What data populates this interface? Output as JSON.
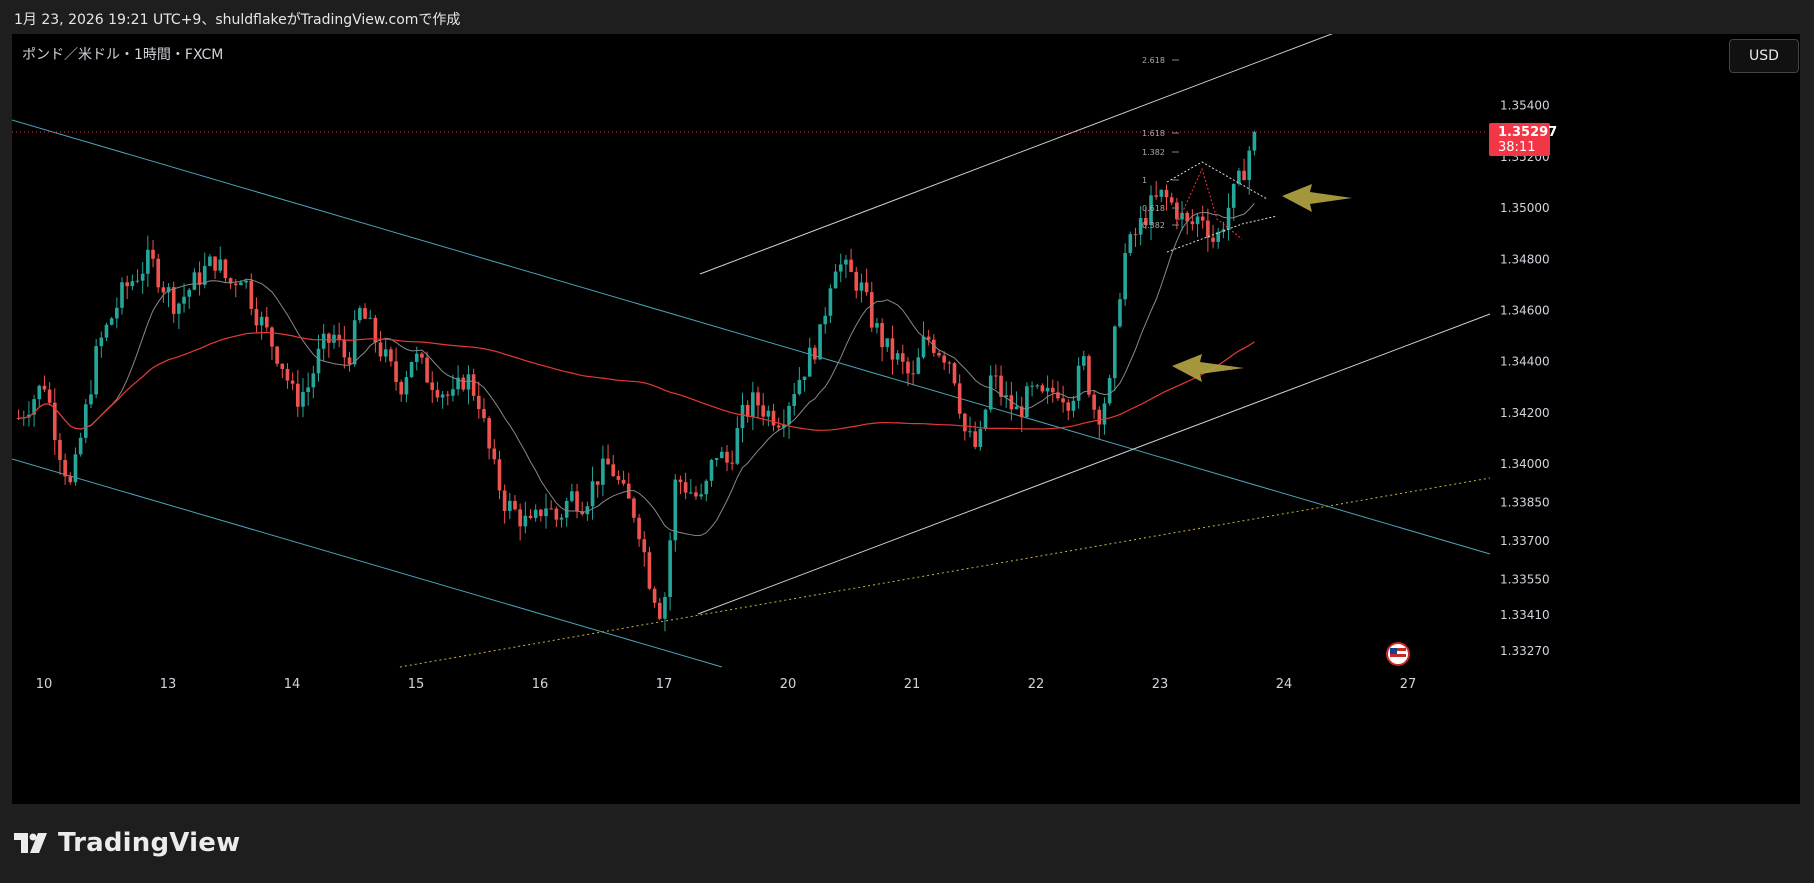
{
  "header": {
    "caption": "1月 23, 2026 19:21 UTC+9、shuldflakeがTradingView.comで作成"
  },
  "chart": {
    "symbol_title": "ポンド／米ドル・1時間・FXCM",
    "currency_label": "USD",
    "current_price": "1.35297",
    "countdown": "38:11",
    "fib_labels": [
      "2.618",
      "1.618",
      "1.382",
      "1",
      "0.618",
      "0.382"
    ]
  },
  "footer": {
    "brand": "TradingView"
  },
  "colors": {
    "up": "#26a69a",
    "down": "#ef5350",
    "ma_long": "#e53935",
    "ma_short": "#888888",
    "channel": "#4aa3b8",
    "trend": "#cfcfcf",
    "dotted": "#c9b33c",
    "arrow": "#b5a642",
    "price_tag": "#f23645"
  },
  "chart_data": {
    "type": "candlestick",
    "title": "ポンド／米ドル・1時間・FXCM",
    "x_ticks": [
      "10",
      "13",
      "14",
      "15",
      "16",
      "17",
      "20",
      "21",
      "22",
      "23",
      "24",
      "27"
    ],
    "y_ticks": [
      "1.35400",
      "1.35200",
      "1.35000",
      "1.34800",
      "1.34600",
      "1.34400",
      "1.34200",
      "1.34000",
      "1.33850",
      "1.33700",
      "1.33550",
      "1.33410",
      "1.33270"
    ],
    "ylim": [
      1.3318,
      1.3568
    ],
    "last_price": 1.35297,
    "close_path": [
      [
        0,
        1.3418
      ],
      [
        2,
        1.3432
      ],
      [
        3,
        1.3408
      ],
      [
        4,
        1.339
      ],
      [
        6,
        1.3445
      ],
      [
        8,
        1.3468
      ],
      [
        10,
        1.348
      ],
      [
        11,
        1.347
      ],
      [
        12,
        1.3462
      ],
      [
        14,
        1.3475
      ],
      [
        15,
        1.348
      ],
      [
        16,
        1.347
      ],
      [
        17,
        1.3475
      ],
      [
        18,
        1.346
      ],
      [
        20,
        1.344
      ],
      [
        21,
        1.3425
      ],
      [
        22,
        1.343
      ],
      [
        23,
        1.3445
      ],
      [
        24,
        1.345
      ],
      [
        25,
        1.344
      ],
      [
        26,
        1.346
      ],
      [
        27,
        1.345
      ],
      [
        28,
        1.344
      ],
      [
        29,
        1.343
      ],
      [
        30,
        1.3443
      ],
      [
        31,
        1.3435
      ],
      [
        32,
        1.343
      ],
      [
        33,
        1.3425
      ],
      [
        34,
        1.3435
      ],
      [
        35,
        1.3425
      ],
      [
        36,
        1.34
      ],
      [
        37,
        1.3385
      ],
      [
        38,
        1.338
      ],
      [
        39,
        1.3375
      ],
      [
        40,
        1.3385
      ],
      [
        41,
        1.3378
      ],
      [
        42,
        1.3388
      ],
      [
        43,
        1.3385
      ],
      [
        44,
        1.3395
      ],
      [
        45,
        1.34
      ],
      [
        46,
        1.3388
      ],
      [
        47,
        1.338
      ],
      [
        48,
        1.3355
      ],
      [
        49,
        1.334
      ],
      [
        50,
        1.3395
      ],
      [
        51,
        1.339
      ],
      [
        52,
        1.3385
      ],
      [
        53,
        1.3405
      ],
      [
        54,
        1.34
      ],
      [
        55,
        1.3418
      ],
      [
        56,
        1.3425
      ],
      [
        57,
        1.342
      ],
      [
        58,
        1.3418
      ],
      [
        59,
        1.343
      ],
      [
        60,
        1.344
      ],
      [
        61,
        1.345
      ],
      [
        62,
        1.348
      ],
      [
        63,
        1.3475
      ],
      [
        64,
        1.347
      ],
      [
        65,
        1.3455
      ],
      [
        66,
        1.3445
      ],
      [
        67,
        1.344
      ],
      [
        68,
        1.3432
      ],
      [
        69,
        1.345
      ],
      [
        70,
        1.3445
      ],
      [
        71,
        1.344
      ],
      [
        72,
        1.3412
      ],
      [
        73,
        1.3405
      ],
      [
        74,
        1.3435
      ],
      [
        75,
        1.3425
      ],
      [
        76,
        1.342
      ],
      [
        77,
        1.3428
      ],
      [
        78,
        1.3425
      ],
      [
        79,
        1.343
      ],
      [
        80,
        1.3425
      ],
      [
        81,
        1.344
      ],
      [
        82,
        1.3418
      ],
      [
        83,
        1.343
      ],
      [
        84,
        1.348
      ],
      [
        85,
        1.349
      ],
      [
        86,
        1.35
      ],
      [
        87,
        1.3505
      ],
      [
        88,
        1.35
      ],
      [
        89,
        1.3492
      ],
      [
        90,
        1.3498
      ],
      [
        91,
        1.3486
      ],
      [
        92,
        1.35
      ],
      [
        93,
        1.3512
      ],
      [
        94,
        1.35297
      ]
    ]
  }
}
